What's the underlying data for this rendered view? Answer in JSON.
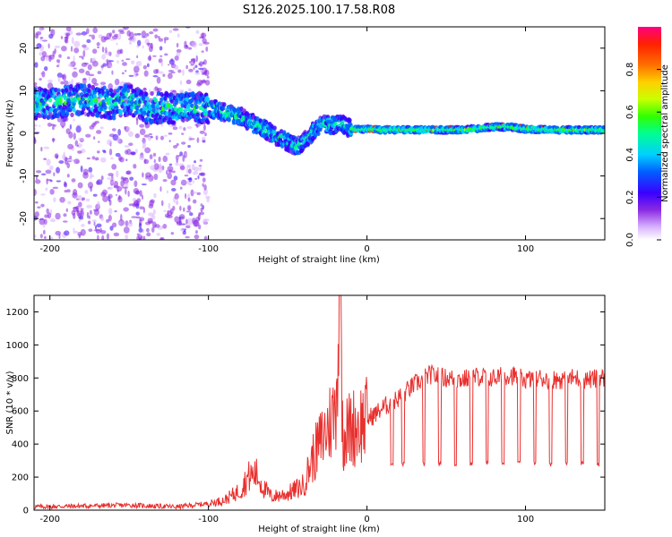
{
  "title": "S126.2025.100.17.58.R08",
  "colors": {
    "snr_line": "#e8302e",
    "axes": "#000000"
  },
  "chart_data": [
    {
      "type": "heatmap",
      "xlabel": "Height of straight line (km)",
      "ylabel": "Frequency (Hz)",
      "xlim": [
        -210,
        150
      ],
      "ylim": [
        -25,
        25
      ],
      "xticks": [
        -200,
        -100,
        0,
        100
      ],
      "yticks": [
        -20,
        -10,
        0,
        10,
        20
      ],
      "colormap": "rainbow-purple-to-red",
      "ridge": {
        "x": [
          -200,
          -180,
          -160,
          -150,
          -140,
          -125,
          -110,
          -100,
          -90,
          -80,
          -70,
          -60,
          -50,
          -45,
          -40,
          -35,
          -30,
          -25,
          -20,
          -15,
          -10,
          -5,
          0,
          10,
          20,
          40,
          60,
          80,
          90,
          100,
          120,
          140,
          150
        ],
        "frequency": [
          7,
          8,
          7,
          8,
          6,
          6,
          6,
          6,
          5,
          4,
          2,
          0,
          -2,
          -3,
          -2,
          0,
          2,
          2,
          2,
          2,
          1,
          1,
          1,
          0.8,
          0.8,
          0.8,
          0.8,
          1.5,
          1.5,
          1,
          0.8,
          0.8,
          0.8
        ]
      },
      "colorbar": {
        "label": "Normalized spectral amplitude",
        "range": [
          0,
          1
        ],
        "ticks": [
          "0.0",
          "0.2",
          "0.4",
          "0.6",
          "0.8"
        ]
      }
    },
    {
      "type": "line",
      "xlabel": "Height of straight line (km)",
      "ylabel": "SNR (10 * v/v)",
      "xlim": [
        -210,
        150
      ],
      "ylim": [
        0,
        1300
      ],
      "xticks": [
        -200,
        -100,
        0,
        100
      ],
      "yticks": [
        0,
        200,
        400,
        600,
        800,
        1000,
        1200
      ],
      "series": [
        {
          "x": [
            -210,
            -180,
            -150,
            -120,
            -100,
            -90,
            -80,
            -75,
            -70,
            -65,
            -60,
            -50,
            -40,
            -35,
            -30,
            -25,
            -20,
            -17,
            -15,
            -10,
            -5,
            0,
            5,
            10,
            15,
            20,
            25,
            30,
            40,
            50,
            60,
            70,
            80,
            90,
            100,
            110,
            120,
            130,
            140,
            150
          ],
          "values": [
            20,
            25,
            30,
            20,
            40,
            60,
            120,
            200,
            220,
            130,
            80,
            100,
            150,
            300,
            400,
            500,
            600,
            1300,
            450,
            500,
            520,
            550,
            580,
            620,
            650,
            680,
            720,
            760,
            820,
            800,
            790,
            810,
            800,
            820,
            790,
            800,
            790,
            800,
            790,
            800
          ]
        }
      ],
      "dropout_value": 280,
      "dropout_x": [
        15,
        22,
        35,
        45,
        55,
        65,
        75,
        85,
        95,
        105,
        115,
        125,
        135,
        145
      ]
    }
  ]
}
